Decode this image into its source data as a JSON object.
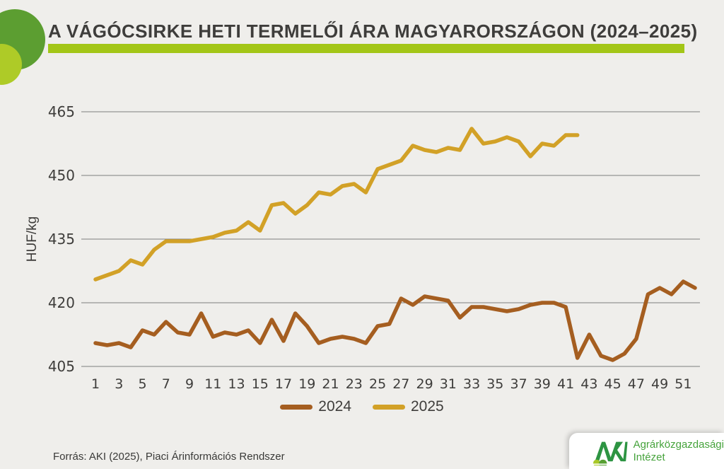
{
  "header": {
    "title": "A VÁGÓCSIRKE HETI TERMELŐI ÁRA MAGYARORSZÁGON (2024–2025)",
    "accent_bar_color": "#A3C617",
    "decor_circle_dark_color": "#5C9E31",
    "decor_circle_light_color": "#AECB27"
  },
  "chart_data": {
    "type": "line",
    "title": "A vágócsirke heti termelői ára Magyarországon (2024–2025)",
    "xlabel": "",
    "ylabel": "HUF/kg",
    "ylim": [
      405,
      465
    ],
    "y_ticks": [
      405,
      420,
      435,
      450,
      465
    ],
    "x_ticks": [
      1,
      3,
      5,
      7,
      9,
      11,
      13,
      15,
      17,
      19,
      21,
      23,
      25,
      27,
      29,
      31,
      33,
      35,
      37,
      39,
      41,
      43,
      45,
      47,
      49,
      51
    ],
    "x": [
      1,
      2,
      3,
      4,
      5,
      6,
      7,
      8,
      9,
      10,
      11,
      12,
      13,
      14,
      15,
      16,
      17,
      18,
      19,
      20,
      21,
      22,
      23,
      24,
      25,
      26,
      27,
      28,
      29,
      30,
      31,
      32,
      33,
      34,
      35,
      36,
      37,
      38,
      39,
      40,
      41,
      42,
      43,
      44,
      45,
      46,
      47,
      48,
      49,
      50,
      51,
      52
    ],
    "grid": "horizontal",
    "legend_position": "bottom",
    "gridline_color": "#7E7E7C",
    "series": [
      {
        "name": "2024",
        "color": "#A55E20",
        "values": [
          410.5,
          410,
          410.5,
          409.5,
          413.5,
          412.5,
          415.5,
          413,
          412.5,
          417.5,
          412,
          413,
          412.5,
          413.5,
          410.5,
          416,
          411,
          417.5,
          414.5,
          410.5,
          411.5,
          412,
          411.5,
          410.5,
          414.5,
          415,
          421,
          419.5,
          421.5,
          421,
          420.5,
          416.5,
          419,
          419,
          418.5,
          418,
          418.5,
          419.5,
          420,
          420,
          419,
          407,
          412.5,
          407.5,
          406.5,
          408,
          411.5,
          422,
          423.5,
          422,
          425,
          423.5
        ]
      },
      {
        "name": "2025",
        "color": "#D2A127",
        "values": [
          425.5,
          426.5,
          427.5,
          430,
          429,
          432.5,
          434.5,
          434.5,
          434.5,
          435,
          435.5,
          436.5,
          437,
          439,
          437,
          443,
          443.5,
          441,
          443,
          446,
          445.5,
          447.5,
          448,
          446,
          451.5,
          452.5,
          453.5,
          457,
          456,
          455.5,
          456.5,
          456,
          461,
          457.5,
          458,
          459,
          458,
          454.5,
          457.5,
          457,
          459.5,
          459.5
        ]
      }
    ]
  },
  "footer": {
    "source_text": "Forrás: AKI (2025), Piaci Árinformációs Rendszer"
  },
  "logo_card": {
    "line1": "Agrárközgazdasági",
    "line2": "Intézet",
    "text_color": "#46A33C",
    "mark_color": "#2D9442",
    "hill_light_color": "#A8C826",
    "hill_dark_color": "#57A032"
  }
}
